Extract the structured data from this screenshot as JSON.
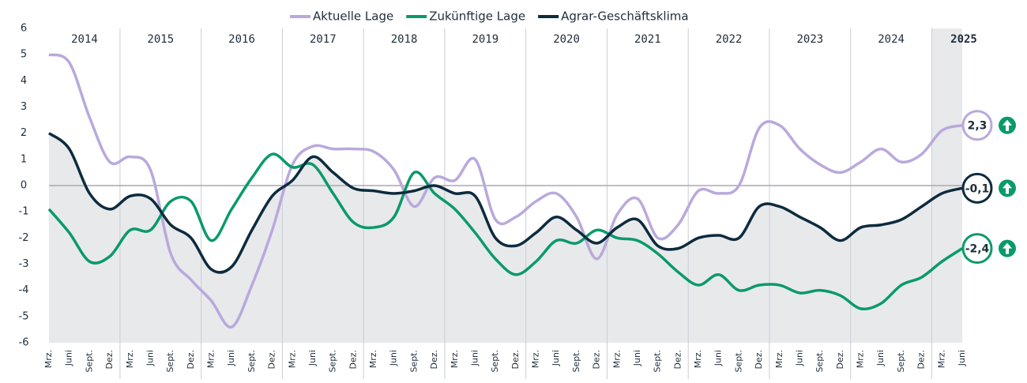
{
  "chart_data": {
    "type": "line",
    "categories": [
      "Mrz.",
      "Juni",
      "Sept.",
      "Dez.",
      "Mrz.",
      "Juni",
      "Sept.",
      "Dez.",
      "Mrz.",
      "Juni",
      "Sept.",
      "Dez.",
      "Mrz.",
      "Juni",
      "Sept.",
      "Dez.",
      "Mrz.",
      "Juni",
      "Sept.",
      "Dez.",
      "Mrz.",
      "Juni",
      "Sept.",
      "Dez.",
      "Mrz.",
      "Juni",
      "Sept.",
      "Dez.",
      "Mrz.",
      "Juni",
      "Sept.",
      "Dez.",
      "Mrz.",
      "Juni",
      "Sept.",
      "Dez.",
      "Mrz.",
      "Juni",
      "Sept.",
      "Dez.",
      "Mrz.",
      "Juni",
      "Sept.",
      "Dez.",
      "Mrz.",
      "Juni"
    ],
    "years": [
      "2014",
      "2015",
      "2016",
      "2017",
      "2018",
      "2019",
      "2020",
      "2021",
      "2022",
      "2023",
      "2024",
      "2025"
    ],
    "series": [
      {
        "name": "Aktuelle Lage",
        "color": "#b9a9dc",
        "values": [
          5.0,
          4.7,
          2.6,
          0.9,
          1.1,
          0.6,
          -2.6,
          -3.6,
          -4.4,
          -5.4,
          -3.8,
          -1.7,
          0.8,
          1.5,
          1.4,
          1.4,
          1.3,
          0.6,
          -0.8,
          0.3,
          0.2,
          1.0,
          -1.3,
          -1.2,
          -0.6,
          -0.3,
          -1.2,
          -2.8,
          -1.1,
          -0.5,
          -2.0,
          -1.5,
          -0.2,
          -0.3,
          0.0,
          2.2,
          2.3,
          1.4,
          0.8,
          0.5,
          0.9,
          1.4,
          0.9,
          1.2,
          2.1,
          2.3
        ],
        "value_labels": [
          null,
          null,
          null,
          null,
          null,
          null,
          null,
          null,
          null,
          null,
          null,
          null,
          null,
          null,
          null,
          null,
          null,
          null,
          null,
          null,
          null,
          null,
          null,
          null,
          null,
          null,
          null,
          null,
          null,
          null,
          null,
          null,
          null,
          null,
          null,
          null,
          null,
          null,
          null,
          null,
          null,
          null,
          null,
          null,
          null,
          "2,3"
        ]
      },
      {
        "name": "Zukünftige Lage",
        "color": "#0a9a6a",
        "values": [
          -0.9,
          -1.8,
          -2.9,
          -2.7,
          -1.7,
          -1.7,
          -0.6,
          -0.6,
          -2.1,
          -0.9,
          0.3,
          1.2,
          0.7,
          0.8,
          -0.3,
          -1.4,
          -1.6,
          -1.2,
          0.5,
          -0.3,
          -0.9,
          -1.8,
          -2.8,
          -3.4,
          -2.9,
          -2.1,
          -2.2,
          -1.7,
          -2.0,
          -2.1,
          -2.6,
          -3.3,
          -3.8,
          -3.4,
          -4.0,
          -3.8,
          -3.8,
          -4.1,
          -4.0,
          -4.2,
          -4.7,
          -4.5,
          -3.8,
          -3.5,
          -2.9,
          -2.4
        ],
        "value_labels": [
          null,
          null,
          null,
          null,
          null,
          null,
          null,
          null,
          null,
          null,
          null,
          null,
          null,
          null,
          null,
          null,
          null,
          null,
          null,
          null,
          null,
          null,
          null,
          null,
          null,
          null,
          null,
          null,
          null,
          null,
          null,
          null,
          null,
          null,
          null,
          null,
          null,
          null,
          null,
          null,
          null,
          null,
          null,
          null,
          null,
          "-2,4"
        ]
      },
      {
        "name": "Agrar-Geschäftsklima",
        "color": "#0d2b3e",
        "values": [
          2.0,
          1.4,
          -0.3,
          -0.9,
          -0.4,
          -0.5,
          -1.5,
          -2.0,
          -3.2,
          -3.1,
          -1.7,
          -0.4,
          0.2,
          1.1,
          0.5,
          -0.1,
          -0.2,
          -0.3,
          -0.2,
          0.0,
          -0.3,
          -0.4,
          -2.0,
          -2.3,
          -1.8,
          -1.2,
          -1.7,
          -2.2,
          -1.6,
          -1.3,
          -2.3,
          -2.4,
          -2.0,
          -1.9,
          -2.0,
          -0.8,
          -0.8,
          -1.2,
          -1.6,
          -2.1,
          -1.6,
          -1.5,
          -1.3,
          -0.8,
          -0.3,
          -0.1
        ],
        "value_labels": [
          null,
          null,
          null,
          null,
          null,
          null,
          null,
          null,
          null,
          null,
          null,
          null,
          null,
          null,
          null,
          null,
          null,
          null,
          null,
          null,
          null,
          null,
          null,
          null,
          null,
          null,
          null,
          null,
          null,
          null,
          null,
          null,
          null,
          null,
          null,
          null,
          null,
          null,
          null,
          null,
          null,
          null,
          null,
          null,
          null,
          "-0,1"
        ]
      }
    ],
    "ylim": [
      -6,
      6
    ],
    "yticks": [
      -6,
      -5,
      -4,
      -3,
      -2,
      -1,
      0,
      1,
      2,
      3,
      4,
      5,
      6
    ]
  }
}
